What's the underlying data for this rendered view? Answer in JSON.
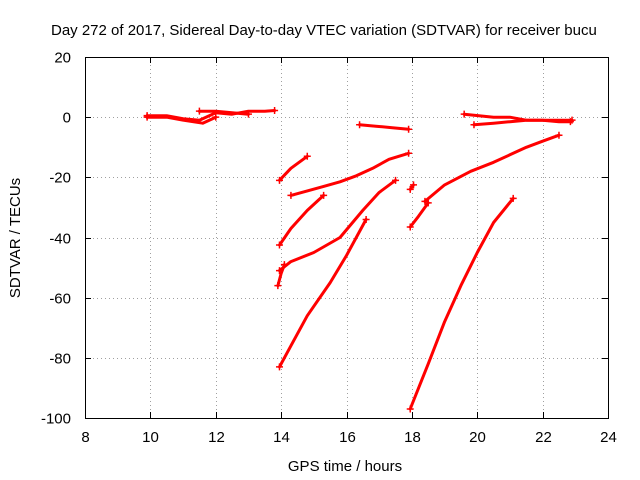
{
  "chart_data": {
    "type": "scatter",
    "title": "Day 272 of 2017, Sidereal Day-to-day VTEC variation (SDTVAR) for receiver bucu",
    "xlabel": "GPS time / hours",
    "ylabel": "SDTVAR / TECUs",
    "xlim": [
      8,
      24
    ],
    "ylim": [
      -100,
      20
    ],
    "xticks": [
      8,
      10,
      12,
      14,
      16,
      18,
      20,
      22,
      24
    ],
    "yticks": [
      -100,
      -80,
      -60,
      -40,
      -20,
      0,
      20
    ],
    "xtick_labels": [
      "8",
      "10",
      "12",
      "14",
      "16",
      "18",
      "20",
      "22",
      "24"
    ],
    "ytick_labels": [
      "-100",
      "-80",
      "-60",
      "-40",
      "-20",
      "0",
      "20"
    ],
    "grid": true,
    "marker": "plus",
    "color": "#ff0000",
    "tracks": [
      {
        "x": [
          9.9,
          10.5,
          11.0,
          11.5,
          12.0,
          12.5,
          13.0,
          13.5,
          13.8
        ],
        "y": [
          0.5,
          0.5,
          -0.5,
          -1.0,
          1.5,
          1.0,
          2.0,
          2.0,
          2.2
        ]
      },
      {
        "x": [
          9.9,
          10.5,
          11.0,
          11.6,
          12.0
        ],
        "y": [
          0,
          0,
          -1.0,
          -2.0,
          0
        ]
      },
      {
        "x": [
          11.5,
          12.0,
          12.5,
          13.0
        ],
        "y": [
          2.0,
          2.0,
          1.5,
          1.0
        ]
      },
      {
        "x": [
          13.95,
          14.3,
          14.8
        ],
        "y": [
          -21,
          -17,
          -13
        ]
      },
      {
        "x": [
          14.3,
          14.8,
          15.3,
          15.8,
          16.3,
          16.8,
          17.3,
          17.9
        ],
        "y": [
          -26,
          -24.5,
          -23,
          -21.5,
          -19.5,
          -17,
          -14,
          -12
        ]
      },
      {
        "x": [
          13.95,
          14.3,
          14.8,
          15.3
        ],
        "y": [
          -42.5,
          -37,
          -31,
          -26
        ]
      },
      {
        "x": [
          13.95,
          14.3,
          15.0,
          15.8,
          16.5,
          17.0,
          17.5
        ],
        "y": [
          -51,
          -48,
          -45,
          -40,
          -31,
          -25,
          -21
        ]
      },
      {
        "x": [
          13.9,
          14.0,
          14.1
        ],
        "y": [
          -56,
          -52,
          -49
        ]
      },
      {
        "x": [
          13.95,
          14.3,
          14.8,
          15.5,
          16.0,
          16.6
        ],
        "y": [
          -83,
          -76,
          -66,
          -55,
          -46,
          -34
        ]
      },
      {
        "x": [
          16.4,
          16.9,
          17.4,
          17.9
        ],
        "y": [
          -2.5,
          -3,
          -3.5,
          -4
        ]
      },
      {
        "x": [
          17.95,
          18.05
        ],
        "y": [
          -24,
          -22.5
        ]
      },
      {
        "x": [
          17.95,
          18.2,
          18.5
        ],
        "y": [
          -36.5,
          -33,
          -28.5
        ]
      },
      {
        "x": [
          18.4,
          19.0,
          19.8,
          20.5,
          21.0,
          21.5,
          22.0,
          22.5
        ],
        "y": [
          -28,
          -22.5,
          -18,
          -15,
          -12.5,
          -10,
          -8,
          -6
        ]
      },
      {
        "x": [
          17.95,
          18.5,
          19.0,
          19.5,
          20.0,
          20.5,
          21.1
        ],
        "y": [
          -97,
          -82,
          -68,
          -56,
          -45,
          -35,
          -27
        ]
      },
      {
        "x": [
          19.6,
          20.5,
          21.0,
          21.5,
          22.0,
          22.5,
          22.85
        ],
        "y": [
          1,
          0,
          0,
          -1,
          -1,
          -1.5,
          -1.5
        ]
      },
      {
        "x": [
          19.9,
          20.5,
          21.0,
          21.5,
          22.0,
          22.5,
          22.9
        ],
        "y": [
          -2.5,
          -2,
          -1.5,
          -1,
          -1,
          -1,
          -1
        ]
      }
    ]
  }
}
